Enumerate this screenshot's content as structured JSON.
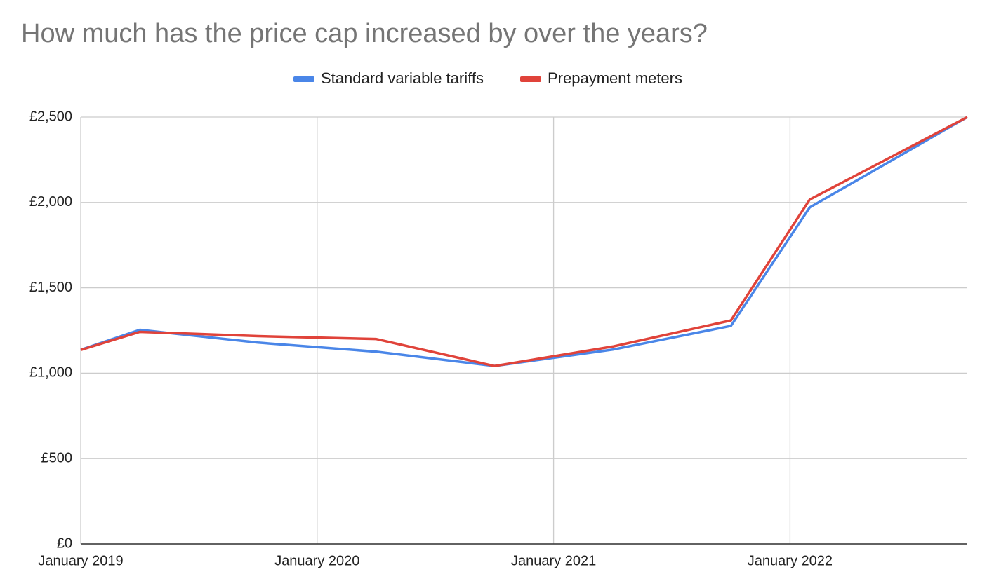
{
  "chart_data": {
    "type": "line",
    "title": "How much has the price cap increased by over the years?",
    "x": [
      "2019-01",
      "2019-04",
      "2019-10",
      "2020-04",
      "2020-10",
      "2021-04",
      "2021-10",
      "2022-02",
      "2022-10"
    ],
    "series": [
      {
        "name": "Standard variable tariffs",
        "color": "#4a86e8",
        "values": [
          1137,
          1254,
          1179,
          1126,
          1042,
          1138,
          1277,
          1971,
          2500
        ]
      },
      {
        "name": "Prepayment meters",
        "color": "#e0433a",
        "values": [
          1136,
          1242,
          1217,
          1200,
          1042,
          1156,
          1309,
          2017,
          2500
        ]
      }
    ],
    "xlim": [
      "2019-01",
      "2022-10"
    ],
    "xticks": [
      {
        "value": "2019-01",
        "label": "January 2019"
      },
      {
        "value": "2020-01",
        "label": "January 2020"
      },
      {
        "value": "2021-01",
        "label": "January 2021"
      },
      {
        "value": "2022-01",
        "label": "January 2022"
      }
    ],
    "ylim": [
      0,
      2500
    ],
    "yticks": [
      {
        "value": 0,
        "label": "£0"
      },
      {
        "value": 500,
        "label": "£500"
      },
      {
        "value": 1000,
        "label": "£1,000"
      },
      {
        "value": 1500,
        "label": "£1,500"
      },
      {
        "value": 2000,
        "label": "£2,000"
      },
      {
        "value": 2500,
        "label": "£2,500"
      }
    ],
    "grid": true,
    "legend": "top"
  }
}
